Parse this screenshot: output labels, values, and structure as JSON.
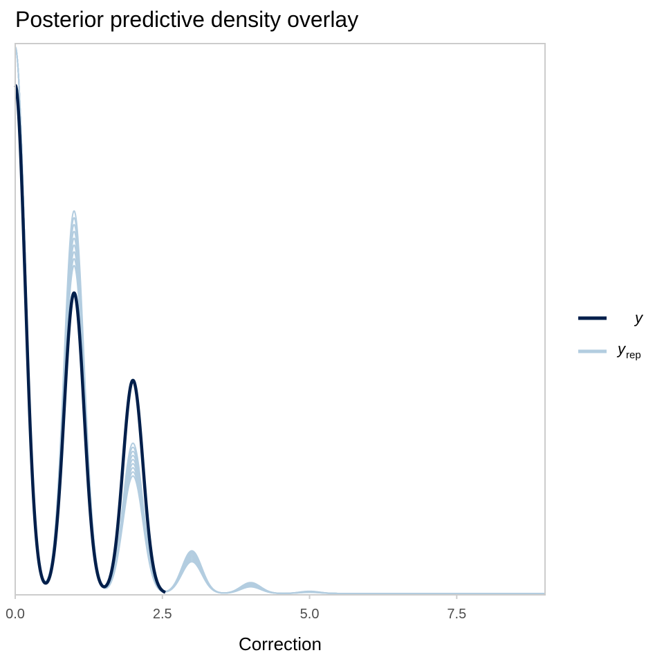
{
  "chart_data": {
    "type": "line",
    "title": "Posterior predictive density overlay",
    "xlabel": "Correction",
    "ylabel": "",
    "xlim": [
      0,
      9
    ],
    "ylim": [
      0,
      1
    ],
    "y_axis_shown": false,
    "grid": false,
    "x_ticks": [
      "0.0",
      "2.5",
      "5.0",
      "7.5"
    ],
    "x_tick_values": [
      0,
      2.5,
      5,
      7.5
    ],
    "legend": {
      "position": "right",
      "items": [
        {
          "label": "y",
          "subscript": ""
        },
        {
          "label": "y",
          "subscript": "rep"
        }
      ]
    },
    "colors": {
      "y": "#011f4b",
      "yrep": "#b3cde0",
      "frame": "#cccccc",
      "tick_text": "#4d4d4d"
    },
    "series": [
      {
        "name": "y",
        "kind": "observed density",
        "bandwidth": 0.17,
        "peaks": [
          {
            "x": 0,
            "density": 0.93
          },
          {
            "x": 1,
            "density": 0.55
          },
          {
            "x": 2,
            "density": 0.39
          }
        ]
      },
      {
        "name": "y_rep",
        "kind": "replicated densities",
        "bandwidth": 0.17,
        "peaks": [
          {
            "x": 0,
            "density": 1.0
          },
          {
            "x": 1,
            "density": 0.65
          },
          {
            "x": 2,
            "density": 0.245
          },
          {
            "x": 3,
            "density": 0.068
          },
          {
            "x": 4,
            "density": 0.016
          },
          {
            "x": 5,
            "density": 0.003
          }
        ],
        "band_spread": [
          0.0,
          0.05,
          0.03,
          0.01,
          0.004,
          0.001
        ]
      }
    ]
  }
}
